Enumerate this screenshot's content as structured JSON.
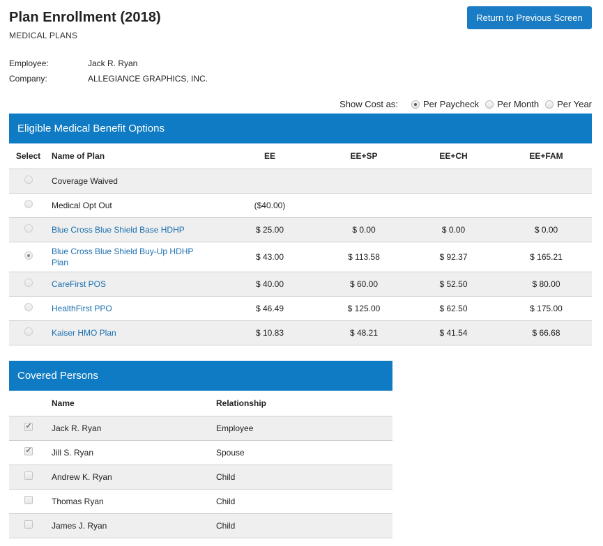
{
  "header": {
    "title": "Plan Enrollment (2018)",
    "subtitle": "MEDICAL PLANS",
    "return_label": "Return to Previous Screen"
  },
  "employee": {
    "employee_label": "Employee:",
    "employee_value": "Jack R. Ryan",
    "company_label": "Company:",
    "company_value": "ALLEGIANCE GRAPHICS, INC."
  },
  "cost_toggle": {
    "label": "Show Cost as:",
    "options": [
      {
        "label": "Per Paycheck",
        "selected": true
      },
      {
        "label": "Per Month",
        "selected": false
      },
      {
        "label": "Per Year",
        "selected": false
      }
    ]
  },
  "plans": {
    "heading": "Eligible Medical Benefit Options",
    "columns": [
      "Select",
      "Name of Plan",
      "EE",
      "EE+SP",
      "EE+CH",
      "EE+FAM"
    ],
    "rows": [
      {
        "name": "Coverage Waived",
        "link": false,
        "selected": false,
        "ee": "",
        "ee_sp": "",
        "ee_ch": "",
        "ee_fam": ""
      },
      {
        "name": "Medical Opt Out",
        "link": false,
        "selected": false,
        "ee": "($40.00)",
        "ee_sp": "",
        "ee_ch": "",
        "ee_fam": ""
      },
      {
        "name": "Blue Cross Blue Shield Base HDHP",
        "link": true,
        "selected": false,
        "ee": "$ 25.00",
        "ee_sp": "$ 0.00",
        "ee_ch": "$ 0.00",
        "ee_fam": "$ 0.00"
      },
      {
        "name": "Blue Cross Blue Shield Buy-Up HDHP Plan",
        "link": true,
        "selected": true,
        "ee": "$ 43.00",
        "ee_sp": "$ 113.58",
        "ee_ch": "$ 92.37",
        "ee_fam": "$ 165.21"
      },
      {
        "name": "CareFirst POS",
        "link": true,
        "selected": false,
        "ee": "$ 40.00",
        "ee_sp": "$ 60.00",
        "ee_ch": "$ 52.50",
        "ee_fam": "$ 80.00"
      },
      {
        "name": "HealthFirst PPO",
        "link": true,
        "selected": false,
        "ee": "$ 46.49",
        "ee_sp": "$ 125.00",
        "ee_ch": "$ 62.50",
        "ee_fam": "$ 175.00"
      },
      {
        "name": "Kaiser HMO Plan",
        "link": true,
        "selected": false,
        "ee": "$ 10.83",
        "ee_sp": "$ 48.21",
        "ee_ch": "$ 41.54",
        "ee_fam": "$ 66.68"
      }
    ]
  },
  "persons": {
    "heading": "Covered Persons",
    "columns": [
      "",
      "Name",
      "Relationship"
    ],
    "rows": [
      {
        "name": "Jack R. Ryan",
        "relationship": "Employee",
        "checked": true
      },
      {
        "name": "Jill S. Ryan",
        "relationship": "Spouse",
        "checked": true
      },
      {
        "name": "Andrew K. Ryan",
        "relationship": "Child",
        "checked": false
      },
      {
        "name": "Thomas Ryan",
        "relationship": "Child",
        "checked": false
      },
      {
        "name": "James J. Ryan",
        "relationship": "Child",
        "checked": false
      }
    ]
  },
  "colors": {
    "header_blue": "#0f7bc4",
    "link_blue": "#1a6fae",
    "row_alt": "#efefef"
  }
}
